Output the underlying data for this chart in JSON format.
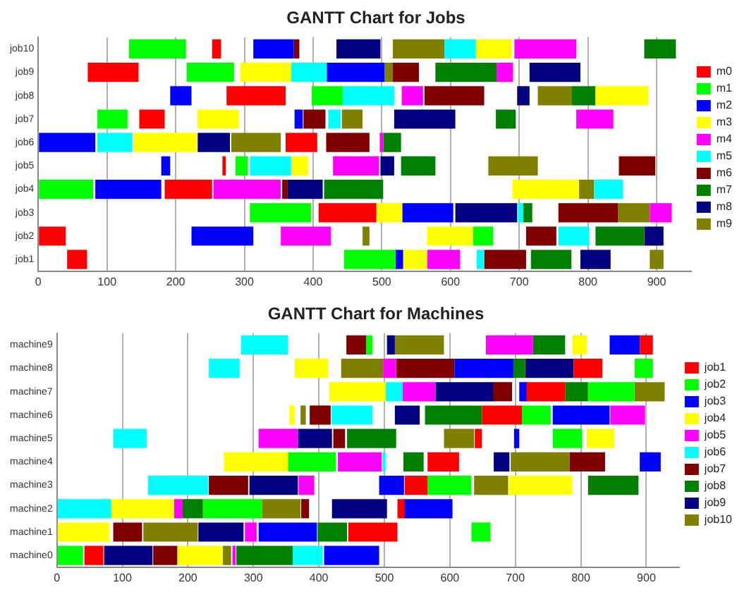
{
  "chart_data": [
    {
      "type": "bar",
      "orientation": "horizontal",
      "title": "GANTT Chart for Jobs",
      "categories": [
        "job10",
        "job9",
        "job8",
        "job7",
        "job6",
        "job5",
        "job4",
        "job3",
        "job2",
        "job1"
      ],
      "xlim": [
        0,
        950
      ],
      "xticks": [
        0,
        100,
        200,
        300,
        400,
        500,
        600,
        700,
        800,
        900
      ],
      "grid": "x",
      "legend": "right",
      "series": [
        {
          "name": "m0",
          "color": "#ff0000",
          "base": [
            253,
            72,
            274,
            147,
            360,
            268,
            184,
            408,
            0,
            42
          ],
          "values": [
            13,
            74,
            86,
            37,
            46,
            5,
            69,
            84,
            40,
            29
          ]
        },
        {
          "name": "m1",
          "color": "#00ff00",
          "base": [
            132,
            216,
            398,
            86,
            null,
            287,
            0,
            308,
            633,
            445
          ],
          "values": [
            83,
            69,
            45,
            44,
            null,
            18,
            80,
            89,
            29,
            75
          ]
        },
        {
          "name": "m2",
          "color": "#0000ff",
          "base": [
            313,
            420,
            192,
            373,
            0,
            179,
            83,
            530,
            223,
            520
          ],
          "values": [
            59,
            84,
            31,
            12,
            83,
            13,
            96,
            74,
            90,
            11
          ]
        },
        {
          "name": "m3",
          "color": "#ffff00",
          "base": [
            637,
            294,
            811,
            232,
            139,
            369,
            690,
            492,
            566,
            531
          ],
          "values": [
            52,
            74,
            77,
            60,
            92,
            24,
            97,
            38,
            67,
            35
          ]
        },
        {
          "name": "m4",
          "color": "#ff00ff",
          "base": [
            693,
            667,
            529,
            783,
            497,
            429,
            255,
            890,
            353,
            566
          ],
          "values": [
            90,
            24,
            31,
            54,
            5,
            67,
            98,
            32,
            73,
            48
          ]
        },
        {
          "name": "m5",
          "color": "#00ffff",
          "base": [
            591,
            368,
            443,
            422,
            86,
            308,
            809,
            698,
            757,
            638
          ],
          "values": [
            46,
            52,
            75,
            18,
            51,
            60,
            42,
            8,
            45,
            11
          ]
        },
        {
          "name": "m6",
          "color": "#800000",
          "base": [
            372,
            516,
            562,
            386,
            419,
            845,
            355,
            757,
            710,
            649
          ],
          "values": [
            8,
            38,
            87,
            32,
            63,
            53,
            8,
            87,
            44,
            61
          ]
        },
        {
          "name": "m7",
          "color": "#008000",
          "base": [
            882,
            578,
            776,
            666,
            502,
            528,
            416,
            706,
            811,
            717
          ],
          "values": [
            46,
            89,
            35,
            29,
            26,
            50,
            86,
            13,
            71,
            59
          ]
        },
        {
          "name": "m8",
          "color": "#000080",
          "base": [
            434,
            715,
            697,
            518,
            232,
            498,
            363,
            607,
            882,
            789
          ],
          "values": [
            64,
            74,
            18,
            89,
            47,
            20,
            51,
            90,
            28,
            44
          ]
        },
        {
          "name": "m9",
          "color": "#808000",
          "base": [
            516,
            504,
            727,
            442,
            281,
            655,
            787,
            844,
            472,
            890
          ],
          "values": [
            75,
            12,
            49,
            30,
            72,
            72,
            22,
            46,
            10,
            20
          ]
        }
      ]
    },
    {
      "type": "bar",
      "orientation": "horizontal",
      "title": "GANTT Chart for Machines",
      "categories": [
        "machine9",
        "machine8",
        "machine7",
        "machine6",
        "machine5",
        "machine4",
        "machine3",
        "machine2",
        "machine1",
        "machine0"
      ],
      "xlim": [
        0,
        950
      ],
      "xticks": [
        0,
        100,
        200,
        300,
        400,
        500,
        600,
        700,
        800,
        900
      ],
      "grid": "x",
      "legend": "right",
      "series": [
        {
          "name": "job1",
          "color": "#ff0000",
          "base": [
            890,
            789,
            717,
            649,
            638,
            566,
            531,
            520,
            445,
            42
          ],
          "values": [
            20,
            44,
            59,
            61,
            11,
            48,
            35,
            11,
            75,
            29
          ]
        },
        {
          "name": "job2",
          "color": "#00ff00",
          "base": [
            472,
            882,
            811,
            710,
            757,
            353,
            566,
            223,
            633,
            0
          ],
          "values": [
            10,
            28,
            71,
            44,
            45,
            73,
            67,
            90,
            29,
            40
          ]
        },
        {
          "name": "job3",
          "color": "#0000ff",
          "base": [
            844,
            607,
            706,
            757,
            698,
            890,
            492,
            530,
            308,
            408
          ],
          "values": [
            46,
            90,
            13,
            87,
            8,
            32,
            38,
            74,
            89,
            84
          ]
        },
        {
          "name": "job4",
          "color": "#ffff00",
          "base": [
            787,
            363,
            416,
            355,
            809,
            255,
            690,
            83,
            0,
            184
          ],
          "values": [
            22,
            51,
            86,
            8,
            42,
            98,
            97,
            96,
            80,
            69
          ]
        },
        {
          "name": "job5",
          "color": "#ff00ff",
          "base": [
            655,
            498,
            528,
            845,
            308,
            429,
            369,
            179,
            287,
            268
          ],
          "values": [
            72,
            20,
            50,
            53,
            60,
            67,
            24,
            13,
            18,
            5
          ]
        },
        {
          "name": "job6",
          "color": "#00ffff",
          "base": [
            281,
            232,
            502,
            419,
            86,
            497,
            139,
            0,
            null,
            360
          ],
          "values": [
            72,
            47,
            26,
            63,
            51,
            5,
            92,
            83,
            null,
            46
          ]
        },
        {
          "name": "job7",
          "color": "#800000",
          "base": [
            442,
            518,
            666,
            386,
            422,
            783,
            232,
            373,
            86,
            147
          ],
          "values": [
            30,
            89,
            29,
            32,
            18,
            54,
            60,
            12,
            44,
            37
          ]
        },
        {
          "name": "job8",
          "color": "#008000",
          "base": [
            727,
            697,
            776,
            562,
            443,
            529,
            811,
            192,
            398,
            274
          ],
          "values": [
            49,
            18,
            35,
            87,
            75,
            31,
            77,
            31,
            45,
            86
          ]
        },
        {
          "name": "job9",
          "color": "#000080",
          "base": [
            504,
            715,
            578,
            516,
            368,
            667,
            294,
            420,
            216,
            72
          ],
          "values": [
            12,
            74,
            89,
            38,
            52,
            24,
            74,
            84,
            69,
            74
          ]
        },
        {
          "name": "job10",
          "color": "#808000",
          "base": [
            516,
            434,
            882,
            372,
            591,
            693,
            637,
            313,
            132,
            253
          ],
          "values": [
            75,
            64,
            46,
            8,
            46,
            90,
            52,
            59,
            83,
            13
          ]
        }
      ]
    }
  ]
}
